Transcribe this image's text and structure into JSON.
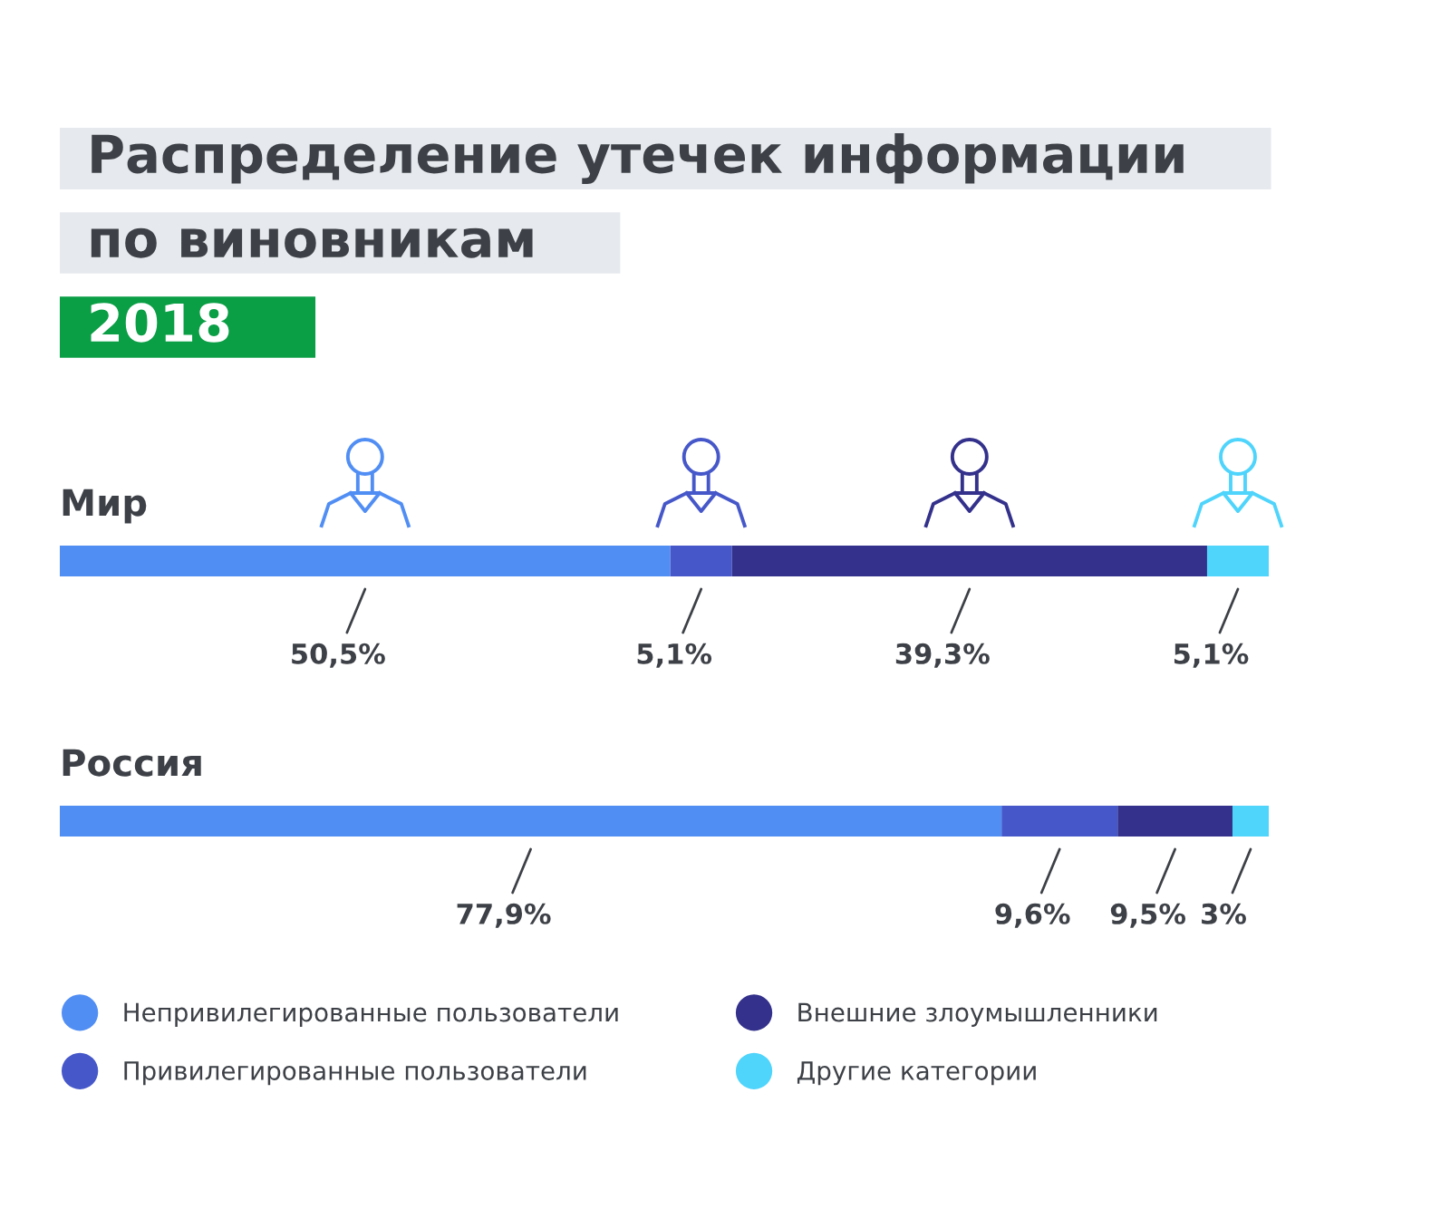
{
  "chart_data": {
    "type": "bar",
    "orientation": "horizontal",
    "stacked": true,
    "title": "Распределение утечек информации\nпо виновникам",
    "subtitle": "2018",
    "categories": [
      "Мир",
      "Россия"
    ],
    "series": [
      {
        "name": "Непривилегированные пользователи",
        "color": "#518ef4",
        "values": [
          50.5,
          77.9
        ],
        "value_labels": [
          "50,5%",
          "77,9%"
        ]
      },
      {
        "name": "Привилегированные пользователи",
        "color": "#4658c9",
        "values": [
          5.1,
          9.6
        ],
        "value_labels": [
          "5,1%",
          "9,6%"
        ]
      },
      {
        "name": "Внешние злоумышленники",
        "color": "#33318b",
        "values": [
          39.3,
          9.5
        ],
        "value_labels": [
          "39,3%",
          "9,5%"
        ]
      },
      {
        "name": "Другие категории",
        "color": "#4fd4fc",
        "values": [
          5.1,
          3
        ],
        "value_labels": [
          "5,1%",
          "3%"
        ]
      }
    ],
    "tick_labels": "y",
    "legend": "bottom"
  }
}
